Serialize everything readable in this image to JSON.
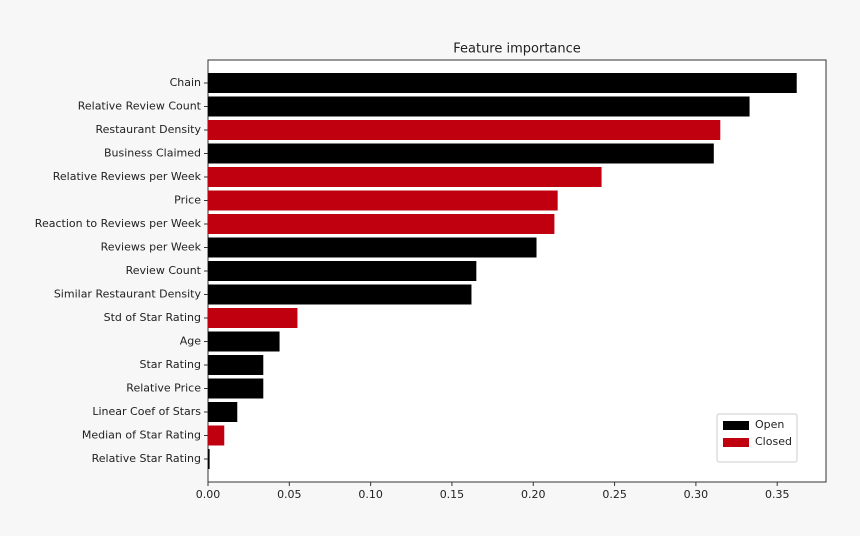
{
  "chart_data": {
    "type": "barh",
    "title": "Feature importance",
    "categories": [
      "Chain",
      "Relative Review Count",
      "Restaurant Density",
      "Business Claimed",
      "Relative Reviews per Week",
      "Price",
      "Reaction to Reviews per Week",
      "Reviews per Week",
      "Review Count",
      "Similar Restaurant Density",
      "Std of Star Rating",
      "Age",
      "Star Rating",
      "Relative Price",
      "Linear Coef of Stars",
      "Median of Star Rating",
      "Relative Star Rating"
    ],
    "series": [
      {
        "name": "Open",
        "color": "#000000",
        "values": [
          0.362,
          0.333,
          null,
          0.311,
          null,
          null,
          null,
          0.202,
          0.165,
          0.162,
          null,
          0.044,
          0.034,
          0.034,
          0.018,
          null,
          0.001
        ]
      },
      {
        "name": "Closed",
        "color": "#c0000f",
        "values": [
          null,
          null,
          0.315,
          null,
          0.242,
          0.215,
          0.213,
          null,
          null,
          null,
          0.055,
          null,
          null,
          null,
          null,
          0.01,
          null
        ]
      }
    ],
    "xlim": [
      0,
      0.38
    ],
    "xticks": [
      {
        "value": 0,
        "label": "0.00"
      },
      0.05,
      {
        "value": 0.1,
        "label": "0.10"
      },
      0.15,
      {
        "value": 0.2,
        "label": "0.20"
      },
      0.25,
      {
        "value": 0.3,
        "label": "0.30"
      },
      0.35
    ],
    "legend": "lower right"
  }
}
